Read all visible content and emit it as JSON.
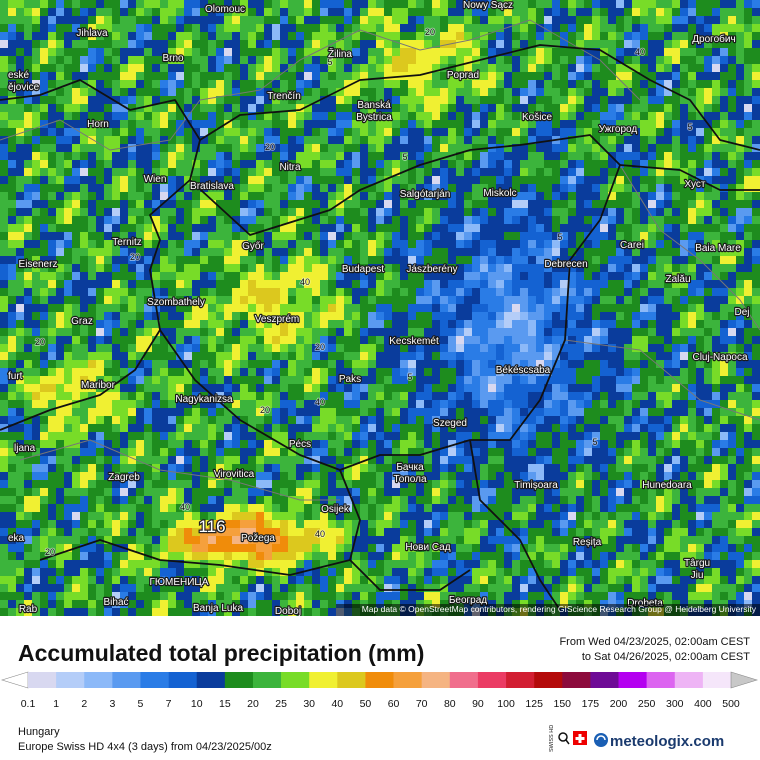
{
  "map": {
    "places": [
      "Olomouc",
      "Nowy Sącz",
      "Jihlava",
      "Brno",
      "Žilina",
      "Poprad",
      "Дрогобич",
      "eské",
      "ějovice",
      "Trenčín",
      "Banská",
      "Bystrica",
      "Horn",
      "Košice",
      "Ужгород",
      "Nitra",
      "Wien",
      "Bratislava",
      "Salgótarján",
      "Miskolc",
      "Хуст",
      "Ternitz",
      "Győr",
      "Carei",
      "Baia Mare",
      "Eisenerz",
      "Budapest",
      "Jászberény",
      "Debrecen",
      "Szombathely",
      "Zalău",
      "Graz",
      "Veszprém",
      "Dej",
      "furt",
      "Kecskemét",
      "Cluj-Napoca",
      "Maribor",
      "Paks",
      "Békéscsaba",
      "ljana",
      "Nagykanizsa",
      "Szeged",
      "Zagreb",
      "Pécs",
      "Virovitica",
      "Бачка",
      "Топола",
      "Timișoara",
      "Hunedoara",
      "Osijek",
      "eka",
      "Požega",
      "Нови Сад",
      "Reșița",
      "Târgu",
      "Jiu",
      "ГЮМЕНИЦА",
      "Bihać",
      "Banja Luka",
      "Doboj",
      "Београд",
      "Drobeta",
      "Rab"
    ],
    "contour_labels": [
      "5",
      "20",
      "40",
      "20",
      "5",
      "40",
      "20",
      "5",
      "20",
      "40",
      "5",
      "20",
      "40",
      "5",
      "20",
      "5",
      "40",
      "20"
    ],
    "peak_label": "116",
    "attribution": "Map data © OpenStreetMap contributors, rendering GIScience Research Group @ Heidelberg University"
  },
  "footer": {
    "title": "Accumulated total precipitation (mm)",
    "period_from": "From Wed 04/23/2025, 02:00am CEST",
    "period_to": "to Sat 04/26/2025, 02:00am CEST",
    "legend": {
      "ticks": [
        0.1,
        1,
        2,
        3,
        5,
        7,
        10,
        15,
        20,
        25,
        30,
        40,
        50,
        60,
        70,
        80,
        90,
        100,
        125,
        150,
        175,
        200,
        250,
        300,
        400,
        500
      ],
      "colors": [
        "#d8d8f0",
        "#b4cdf8",
        "#8cb9f8",
        "#5a9af0",
        "#2a7ce6",
        "#1462d2",
        "#0a3c9c",
        "#1e8c1e",
        "#3cb43c",
        "#78dc28",
        "#f0f032",
        "#dcc81e",
        "#f08c0a",
        "#f5a03c",
        "#f5b482",
        "#f06e8c",
        "#eb3c64",
        "#d21e32",
        "#b40a0a",
        "#8c0a3c",
        "#6e0a96",
        "#b400f0",
        "#dc64f0",
        "#eeb4f5",
        "#f5e6fa"
      ],
      "under_color": "#ffffff",
      "over_color": "#c8c8c8"
    },
    "region": "Hungary",
    "model": "Europe Swiss HD 4x4 (3 days) from 04/23/2025/00z",
    "brand": "meteologix.com",
    "swiss_hd": "SWISS HD"
  }
}
